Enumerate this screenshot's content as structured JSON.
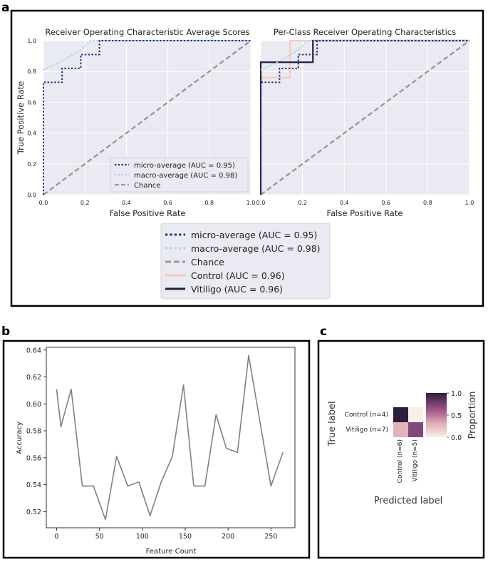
{
  "panels": {
    "a": "a",
    "b": "b",
    "c": "c"
  },
  "colors": {
    "micro": "#2a2d7c",
    "macro": "#a7d7ea",
    "chance": "#999999",
    "control": "#f7c9c1",
    "vitiligo": "#2b1f40",
    "plotbg": "#eaeaf2",
    "line": "#808080"
  },
  "chart_data": [
    {
      "id": "roc_avg",
      "type": "line",
      "title": "Receiver Operating Characteristic Average Scores",
      "xlabel": "False Positive Rate",
      "ylabel": "True Positive Rate",
      "xlim": [
        0,
        1
      ],
      "ylim": [
        0,
        1
      ],
      "xticks": [
        "0.0",
        "0.2",
        "0.4",
        "0.6",
        "0.8",
        "1.0"
      ],
      "yticks": [
        "0.0",
        "0.2",
        "0.4",
        "0.6",
        "0.8",
        "1.0"
      ],
      "grid": true,
      "legend_position": "lower-right",
      "series": [
        {
          "key": "micro",
          "name": "micro-average (AUC = 0.95)",
          "style": "dotted",
          "x": [
            0,
            0,
            0.09,
            0.09,
            0.18,
            0.18,
            0.27,
            0.27,
            1.0
          ],
          "y": [
            0,
            0.73,
            0.73,
            0.82,
            0.82,
            0.91,
            0.91,
            1.0,
            1.0
          ]
        },
        {
          "key": "macro",
          "name": "macro-average (AUC = 0.98)",
          "style": "dotted",
          "x": [
            0,
            0.08,
            0.17,
            0.23,
            1.0
          ],
          "y": [
            0.81,
            0.86,
            0.93,
            1.0,
            1.0
          ]
        },
        {
          "key": "chance",
          "name": "Chance",
          "style": "dashed",
          "x": [
            0,
            1
          ],
          "y": [
            0,
            1
          ]
        }
      ]
    },
    {
      "id": "roc_class",
      "type": "line",
      "title": "Per-Class Receiver Operating Characteristics",
      "xlabel": "False Positive Rate",
      "xlim": [
        0,
        1
      ],
      "ylim": [
        0,
        1
      ],
      "xticks": [
        "0.0",
        "0.2",
        "0.4",
        "0.6",
        "0.8",
        "1.0"
      ],
      "grid": true,
      "series": [
        {
          "key": "micro",
          "name": "micro-average (AUC = 0.95)",
          "style": "dotted",
          "x": [
            0,
            0,
            0.09,
            0.09,
            0.18,
            0.18,
            0.27,
            0.27,
            1.0
          ],
          "y": [
            0,
            0.73,
            0.73,
            0.82,
            0.82,
            0.91,
            0.91,
            1.0,
            1.0
          ]
        },
        {
          "key": "macro",
          "name": "macro-average (AUC = 0.98)",
          "style": "dotted",
          "x": [
            0,
            0.08,
            0.17,
            0.23,
            1.0
          ],
          "y": [
            0.81,
            0.86,
            0.93,
            1.0,
            1.0
          ]
        },
        {
          "key": "chance",
          "name": "Chance",
          "style": "dashed",
          "x": [
            0,
            1
          ],
          "y": [
            0,
            1
          ]
        },
        {
          "key": "control",
          "name": "Control (AUC = 0.96)",
          "style": "solid",
          "x": [
            0,
            0,
            0.14,
            0.14,
            0.25,
            1.0
          ],
          "y": [
            0,
            0.76,
            0.76,
            1.0,
            1.0,
            1.0
          ]
        },
        {
          "key": "vitiligo",
          "name": "Vitiligo (AUC = 0.96)",
          "style": "solid",
          "x": [
            0,
            0,
            0.25,
            0.25,
            1.0
          ],
          "y": [
            0,
            0.86,
            0.86,
            1.0,
            1.0
          ]
        }
      ]
    },
    {
      "id": "accuracy",
      "type": "line",
      "xlabel": "Feature Count",
      "ylabel": "Accuracy",
      "xlim": [
        -12,
        278
      ],
      "ylim": [
        0.508,
        0.642
      ],
      "xticks": [
        0,
        50,
        100,
        150,
        200,
        250
      ],
      "yticks": [
        0.52,
        0.54,
        0.56,
        0.58,
        0.6,
        0.62,
        0.64
      ],
      "ytick_labels": [
        "0.52",
        "0.54",
        "0.56",
        "0.58",
        "0.60",
        "0.62",
        "0.64"
      ],
      "grid": false,
      "x": [
        0,
        5,
        17,
        30,
        43,
        57,
        70,
        83,
        96,
        109,
        122,
        135,
        148,
        160,
        173,
        186,
        198,
        211,
        224,
        250,
        264
      ],
      "y": [
        0.611,
        0.583,
        0.611,
        0.539,
        0.539,
        0.514,
        0.561,
        0.539,
        0.542,
        0.517,
        0.542,
        0.561,
        0.614,
        0.539,
        0.539,
        0.592,
        0.567,
        0.564,
        0.636,
        0.539,
        0.564
      ]
    },
    {
      "id": "confusion",
      "type": "heatmap",
      "xlabel": "Predicted label",
      "ylabel": "True label",
      "row_labels": [
        "Control (n=4)",
        "Vitiligo (n=7)"
      ],
      "col_labels": [
        "Control (n=6)",
        "Vitiligo (n=5)"
      ],
      "values": [
        [
          1.0,
          0.0
        ],
        [
          0.29,
          0.71
        ]
      ],
      "colorbar_label": "Proportion",
      "colorbar_ticks": [
        "0.0",
        "0.5",
        "1.0"
      ],
      "vmin": 0,
      "vmax": 1
    }
  ]
}
